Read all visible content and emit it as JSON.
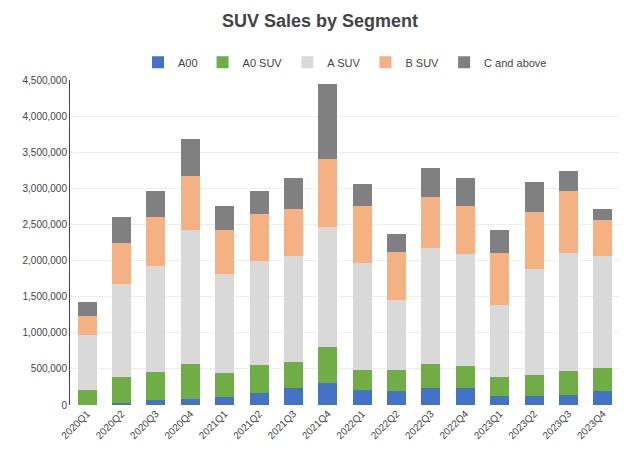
{
  "chart_data": {
    "type": "bar",
    "title": "SUV Sales by Segment",
    "stacked": true,
    "categories": [
      "2020Q1",
      "2020Q2",
      "2020Q3",
      "2020Q4",
      "2021Q1",
      "2021Q2",
      "2021Q3",
      "2021Q4",
      "2022Q1",
      "2022Q2",
      "2022Q3",
      "2022Q4",
      "2023Q1",
      "2023Q2",
      "2023Q3",
      "2023Q4"
    ],
    "series": [
      {
        "name": "A00",
        "color": "#4472C4",
        "values": [
          0,
          30000,
          70000,
          80000,
          110000,
          160000,
          240000,
          300000,
          210000,
          200000,
          230000,
          240000,
          120000,
          130000,
          140000,
          190000
        ]
      },
      {
        "name": "A0 SUV",
        "color": "#70AD47",
        "values": [
          210000,
          360000,
          390000,
          490000,
          340000,
          400000,
          360000,
          500000,
          280000,
          280000,
          340000,
          300000,
          270000,
          280000,
          330000,
          320000
        ]
      },
      {
        "name": "A SUV",
        "color": "#D9D9D9",
        "values": [
          760000,
          1290000,
          1460000,
          1850000,
          1360000,
          1440000,
          1470000,
          1670000,
          1480000,
          970000,
          1600000,
          1550000,
          990000,
          1480000,
          1640000,
          1560000
        ]
      },
      {
        "name": "B SUV",
        "color": "#F4B183",
        "values": [
          260000,
          560000,
          680000,
          750000,
          620000,
          640000,
          640000,
          930000,
          790000,
          670000,
          710000,
          660000,
          730000,
          780000,
          850000,
          490000
        ]
      },
      {
        "name": "C and above",
        "color": "#808080",
        "values": [
          190000,
          360000,
          360000,
          520000,
          330000,
          330000,
          430000,
          1050000,
          300000,
          250000,
          400000,
          400000,
          320000,
          420000,
          280000,
          150000
        ]
      }
    ],
    "ylim": [
      0,
      4500000
    ],
    "yticks": [
      0,
      {
        "value": 500000,
        "label": "500,000"
      },
      {
        "value": 1000000,
        "label": "1,000,000"
      },
      {
        "value": 1500000,
        "label": "1,500,000"
      },
      {
        "value": 2000000,
        "label": "2,000,000"
      },
      {
        "value": 2500000,
        "label": "2,500,000"
      },
      {
        "value": 3000000,
        "label": "3,000,000"
      },
      {
        "value": 3500000,
        "label": "3,500,000"
      },
      {
        "value": 4000000,
        "label": "4,000,000"
      },
      {
        "value": 4500000,
        "label": "4,500,000"
      }
    ],
    "grid": true,
    "legend": "upper center"
  }
}
